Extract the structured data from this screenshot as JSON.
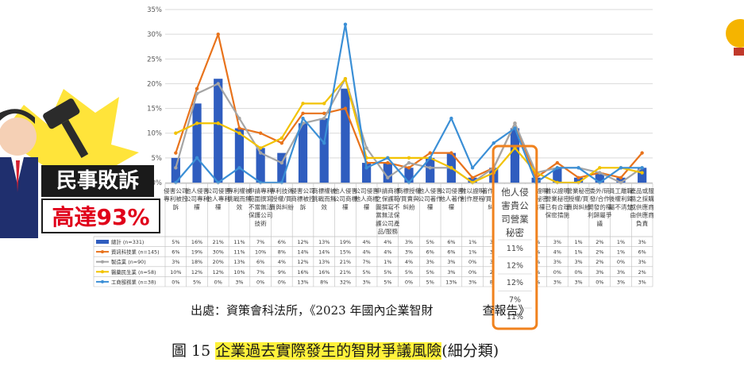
{
  "chart_data": {
    "type": "bar",
    "ylim": [
      0,
      35
    ],
    "yticks": [
      "0%",
      "5%",
      "10%",
      "15%",
      "20%",
      "25%",
      "30%",
      "35%"
    ],
    "categories": [
      "侵害公司專利被控訴",
      "他人侵害公司專利權",
      "公司侵害他人專利權",
      "專利權被挑戰而無效",
      "申請專利範圍撰寫不當無法保護公司技術",
      "專利技術授權/買賣與糾紛",
      "侵害公司商標被控訴",
      "商標權被挑戰而無效",
      "他人侵害公司商標權",
      "公司侵害他人商標權",
      "申請商標之保護範圍撰寫不當無法保護公司產品/服務",
      "商標授權/買賣與糾紛",
      "他人侵害公司著作權",
      "公司侵害他人著作權",
      "難以證明創作歷程",
      "著作授權/買賣與糾紛",
      "他人侵害公司營業秘密",
      "難以證明營業秘密所有權",
      "難以證明營業秘密已有合理保密措施",
      "營業秘密授權/買賣與糾紛",
      "委外/研發/合作開發的權利歸屬爭議",
      "員工離職後權利歸屬不清楚",
      "產品或服務之採購或供應商由供應商負責"
    ],
    "series": [
      {
        "name": "總計 (n=331)",
        "type": "bar",
        "color": "#2f5dbf",
        "values": [
          5,
          16,
          21,
          11,
          7,
          6,
          12,
          13,
          19,
          4,
          4,
          3,
          5,
          6,
          1,
          3,
          11,
          1,
          3,
          1,
          2,
          1,
          3
        ],
        "labels": [
          "5%",
          "16%",
          "21%",
          "11%",
          "7%",
          "6%",
          "12%",
          "13%",
          "19%",
          "4%",
          "4%",
          "3%",
          "5%",
          "6%",
          "1%",
          "3%",
          "11%",
          "1%",
          "3%",
          "1%",
          "2%",
          "1%",
          "3%"
        ]
      },
      {
        "name": "資訊科技業 (n=145)",
        "type": "line",
        "color": "#e8731c",
        "values": [
          6,
          19,
          30,
          11,
          10,
          8,
          14,
          14,
          15,
          4,
          4,
          3,
          6,
          6,
          1,
          3,
          12,
          1,
          4,
          1,
          2,
          1,
          6
        ],
        "labels": [
          "6%",
          "19%",
          "30%",
          "11%",
          "10%",
          "8%",
          "14%",
          "14%",
          "15%",
          "4%",
          "4%",
          "3%",
          "6%",
          "6%",
          "1%",
          "3%",
          "12%",
          "1%",
          "4%",
          "1%",
          "2%",
          "1%",
          "6%"
        ]
      },
      {
        "name": "製造業 (n=90)",
        "type": "line",
        "color": "#a5a5a5",
        "values": [
          3,
          18,
          20,
          13,
          6,
          4,
          12,
          13,
          21,
          7,
          1,
          4,
          3,
          3,
          0,
          3,
          12,
          2,
          3,
          3,
          2,
          0,
          3
        ],
        "labels": [
          "3%",
          "18%",
          "20%",
          "13%",
          "6%",
          "4%",
          "12%",
          "13%",
          "21%",
          "7%",
          "1%",
          "4%",
          "3%",
          "3%",
          "0%",
          "3%",
          "12%",
          "2%",
          "3%",
          "3%",
          "2%",
          "0%",
          "3%"
        ]
      },
      {
        "name": "醫藥民生業 (n=58)",
        "type": "line",
        "color": "#f2c200",
        "values": [
          10,
          12,
          12,
          10,
          7,
          9,
          16,
          16,
          21,
          5,
          5,
          5,
          5,
          3,
          0,
          2,
          7,
          2,
          0,
          0,
          3,
          3,
          2
        ],
        "labels": [
          "10%",
          "12%",
          "12%",
          "10%",
          "7%",
          "9%",
          "16%",
          "16%",
          "21%",
          "5%",
          "5%",
          "5%",
          "5%",
          "3%",
          "0%",
          "2%",
          "7%",
          "2%",
          "0%",
          "0%",
          "3%",
          "3%",
          "2%"
        ]
      },
      {
        "name": "工商服務業 (n=38)",
        "type": "line",
        "color": "#3b8fd6",
        "values": [
          0,
          5,
          0,
          3,
          0,
          0,
          13,
          8,
          32,
          3,
          5,
          0,
          5,
          13,
          3,
          8,
          11,
          0,
          3,
          3,
          0,
          3,
          3
        ],
        "labels": [
          "0%",
          "5%",
          "0%",
          "3%",
          "0%",
          "0%",
          "13%",
          "8%",
          "32%",
          "3%",
          "5%",
          "0%",
          "5%",
          "13%",
          "3%",
          "8%",
          "11%",
          "0%",
          "3%",
          "3%",
          "0%",
          "3%",
          "3%"
        ]
      }
    ],
    "highlight_index": 16,
    "highlight_label_lines": [
      "他人侵",
      "害貴公",
      "司營業",
      "秘密"
    ]
  },
  "source_text": "出處：資策會科法所，《2023 年國內企業智財",
  "source_text_tail": "查報告》",
  "caption": {
    "prefix": "圖 15 ",
    "highlight": "企業過去實際發生的智財爭議風險",
    "suffix": "(細分類)"
  },
  "badge": {
    "line1": "民事敗訴",
    "line2": "高達93%"
  },
  "colors": {
    "accent": "#f0821e",
    "badge_red": "#e0001a"
  }
}
